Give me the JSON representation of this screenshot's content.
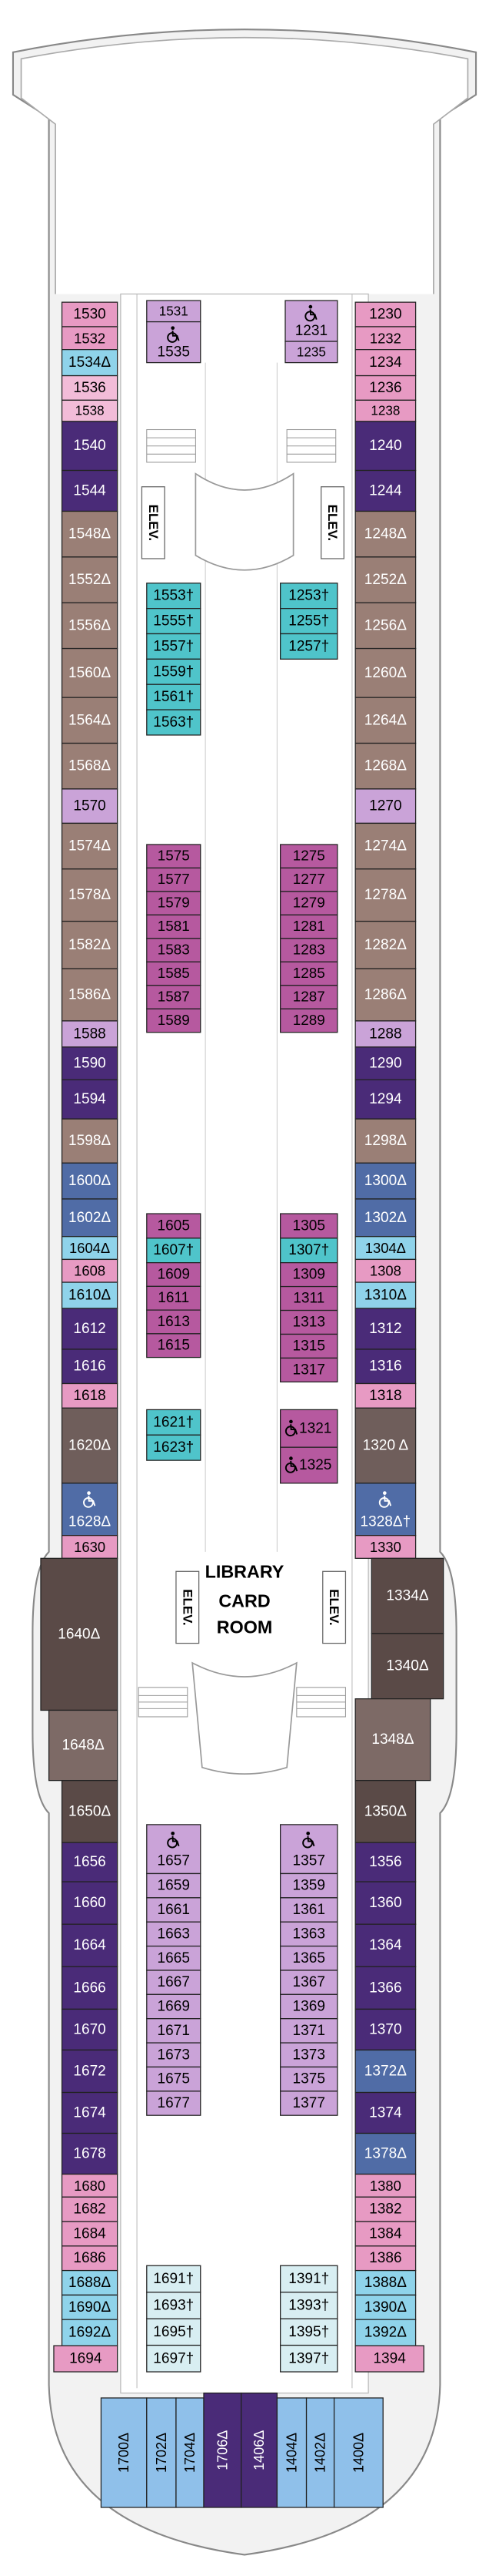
{
  "elevator_labels": [
    "ELEV.",
    "ELEV.",
    "ELEV.",
    "ELEV."
  ],
  "library_label": [
    "LIBRARY",
    "CARD",
    "ROOM"
  ],
  "groups": [
    {
      "labels": [
        "1530",
        "1532"
      ],
      "color": "#e79ac3",
      "text_color": "#000000"
    },
    {
      "labels": [
        "1534Δ"
      ],
      "color": "#8fd3ea",
      "text_color": "#000000"
    },
    {
      "labels": [
        "1536",
        "1538"
      ],
      "color": "#f2bcd8",
      "text_color": "#000000"
    },
    {
      "labels": [
        "1540",
        "1544"
      ],
      "color": "#4a2b78",
      "text_color": "#ffffff"
    },
    {
      "labels": [
        "1548Δ",
        "1552Δ",
        "1556Δ",
        "1560Δ",
        "1564Δ",
        "1568Δ"
      ],
      "color": "#9a7f76",
      "text_color": "#ffffff"
    },
    {
      "labels": [
        "1570"
      ],
      "color": "#caa3d8",
      "text_color": "#000000"
    },
    {
      "labels": [
        "1574Δ",
        "1578Δ",
        "1582Δ",
        "1586Δ"
      ],
      "color": "#9a7f76",
      "text_color": "#ffffff"
    },
    {
      "labels": [
        "1588"
      ],
      "color": "#caa3d8",
      "text_color": "#000000"
    },
    {
      "labels": [
        "1590",
        "1594"
      ],
      "color": "#4a2b78",
      "text_color": "#ffffff"
    },
    {
      "labels": [
        "1598Δ"
      ],
      "color": "#9a7f76",
      "text_color": "#ffffff"
    },
    {
      "labels": [
        "1600Δ",
        "1602Δ"
      ],
      "color": "#506ca6",
      "text_color": "#ffffff"
    },
    {
      "labels": [
        "1604Δ"
      ],
      "color": "#8fd3ea",
      "text_color": "#000000"
    },
    {
      "labels": [
        "1608"
      ],
      "color": "#e79ac3",
      "text_color": "#000000"
    },
    {
      "labels": [
        "1610Δ"
      ],
      "color": "#8fd3ea",
      "text_color": "#000000"
    },
    {
      "labels": [
        "1612",
        "1616"
      ],
      "color": "#4a2b78",
      "text_color": "#ffffff"
    },
    {
      "labels": [
        "1618"
      ],
      "color": "#e79ac3",
      "text_color": "#000000"
    },
    {
      "labels": [
        "1620Δ"
      ],
      "color": "#6f5e5b",
      "text_color": "#ffffff"
    },
    {
      "labels": [
        "1628Δ"
      ],
      "color": "#506ca6",
      "text_color": "#ffffff",
      "accessible": true
    },
    {
      "labels": [
        "1630"
      ],
      "color": "#e79ac3",
      "text_color": "#000000"
    },
    {
      "labels": [
        "1640Δ"
      ],
      "color": "#5a4a47",
      "text_color": "#ffffff"
    },
    {
      "labels": [
        "1648Δ"
      ],
      "color": "#7d6a66",
      "text_color": "#ffffff"
    },
    {
      "labels": [
        "1650Δ"
      ],
      "color": "#5a4a47",
      "text_color": "#ffffff"
    },
    {
      "labels": [
        "1656",
        "1660",
        "1664",
        "1666",
        "1670",
        "1672",
        "1674",
        "1678"
      ],
      "color": "#4a2b78",
      "text_color": "#ffffff"
    },
    {
      "labels": [
        "1680",
        "1682",
        "1684",
        "1686"
      ],
      "color": "#e79ac3",
      "text_color": "#000000"
    },
    {
      "labels": [
        "1688Δ",
        "1690Δ",
        "1692Δ"
      ],
      "color": "#8fd3ea",
      "text_color": "#000000"
    },
    {
      "labels": [
        "1694"
      ],
      "color": "#e79ac3",
      "text_color": "#000000"
    },
    {
      "labels": [
        "1230",
        "1232",
        "1234",
        "1236",
        "1238"
      ],
      "color": "#e79ac3",
      "text_color": "#000000"
    },
    {
      "labels": [
        "1240",
        "1244"
      ],
      "color": "#4a2b78",
      "text_color": "#ffffff"
    },
    {
      "labels": [
        "1248Δ",
        "1252Δ",
        "1256Δ",
        "1260Δ",
        "1264Δ",
        "1268Δ"
      ],
      "color": "#9a7f76",
      "text_color": "#ffffff"
    },
    {
      "labels": [
        "1270"
      ],
      "color": "#caa3d8",
      "text_color": "#000000"
    },
    {
      "labels": [
        "1274Δ",
        "1278Δ",
        "1282Δ",
        "1286Δ"
      ],
      "color": "#9a7f76",
      "text_color": "#ffffff"
    },
    {
      "labels": [
        "1288"
      ],
      "color": "#caa3d8",
      "text_color": "#000000"
    },
    {
      "labels": [
        "1290",
        "1294"
      ],
      "color": "#4a2b78",
      "text_color": "#ffffff"
    },
    {
      "labels": [
        "1298Δ"
      ],
      "color": "#9a7f76",
      "text_color": "#ffffff"
    },
    {
      "labels": [
        "1300Δ",
        "1302Δ"
      ],
      "color": "#506ca6",
      "text_color": "#ffffff"
    },
    {
      "labels": [
        "1304Δ"
      ],
      "color": "#8fd3ea",
      "text_color": "#000000"
    },
    {
      "labels": [
        "1308"
      ],
      "color": "#e79ac3",
      "text_color": "#000000"
    },
    {
      "labels": [
        "1310Δ"
      ],
      "color": "#8fd3ea",
      "text_color": "#000000"
    },
    {
      "labels": [
        "1312",
        "1316"
      ],
      "color": "#4a2b78",
      "text_color": "#ffffff"
    },
    {
      "labels": [
        "1318"
      ],
      "color": "#e79ac3",
      "text_color": "#000000"
    },
    {
      "labels": [
        "1320 Δ"
      ],
      "color": "#6f5e5b",
      "text_color": "#ffffff"
    },
    {
      "labels": [
        "1328Δ†"
      ],
      "color": "#506ca6",
      "text_color": "#ffffff",
      "accessible": true
    },
    {
      "labels": [
        "1330"
      ],
      "color": "#e79ac3",
      "text_color": "#000000"
    },
    {
      "labels": [
        "1334Δ",
        "1340Δ"
      ],
      "color": "#5a4a47",
      "text_color": "#ffffff"
    },
    {
      "labels": [
        "1348Δ"
      ],
      "color": "#7d6a66",
      "text_color": "#ffffff"
    },
    {
      "labels": [
        "1350Δ"
      ],
      "color": "#5a4a47",
      "text_color": "#ffffff"
    },
    {
      "labels": [
        "1356",
        "1360",
        "1364",
        "1366",
        "1370"
      ],
      "color": "#4a2b78",
      "text_color": "#ffffff"
    },
    {
      "labels": [
        "1372Δ"
      ],
      "color": "#506ca6",
      "text_color": "#ffffff"
    },
    {
      "labels": [
        "1374"
      ],
      "color": "#4a2b78",
      "text_color": "#ffffff"
    },
    {
      "labels": [
        "1378Δ"
      ],
      "color": "#506ca6",
      "text_color": "#ffffff"
    },
    {
      "labels": [
        "1380",
        "1382",
        "1384",
        "1386"
      ],
      "color": "#e79ac3",
      "text_color": "#000000"
    },
    {
      "labels": [
        "1388Δ",
        "1390Δ",
        "1392Δ"
      ],
      "color": "#8fd3ea",
      "text_color": "#000000"
    },
    {
      "labels": [
        "1394"
      ],
      "color": "#e79ac3",
      "text_color": "#000000"
    },
    {
      "labels": [
        "1531"
      ],
      "color": "#caa3d8",
      "text_color": "#000000"
    },
    {
      "labels": [
        "1535"
      ],
      "color": "#caa3d8",
      "text_color": "#000000",
      "accessible": true
    },
    {
      "labels": [
        "1231"
      ],
      "color": "#caa3d8",
      "text_color": "#000000",
      "accessible": true
    },
    {
      "labels": [
        "1235"
      ],
      "color": "#caa3d8",
      "text_color": "#000000"
    },
    {
      "labels": [
        "1553†",
        "1555†",
        "1557†",
        "1559†",
        "1561†",
        "1563†"
      ],
      "color": "#4fc4ca",
      "text_color": "#000000"
    },
    {
      "labels": [
        "1253†",
        "1255†",
        "1257†"
      ],
      "color": "#4fc4ca",
      "text_color": "#000000"
    },
    {
      "labels": [
        "1575",
        "1577",
        "1579",
        "1581",
        "1583",
        "1585",
        "1587",
        "1589"
      ],
      "color": "#b6599f",
      "text_color": "#000000"
    },
    {
      "labels": [
        "1275",
        "1277",
        "1279",
        "1281",
        "1283",
        "1285",
        "1287",
        "1289"
      ],
      "color": "#b6599f",
      "text_color": "#000000"
    },
    {
      "labels": [
        "1605"
      ],
      "color": "#b6599f",
      "text_color": "#000000"
    },
    {
      "labels": [
        "1607†"
      ],
      "color": "#4fc4ca",
      "text_color": "#000000"
    },
    {
      "labels": [
        "1609",
        "1611",
        "1613",
        "1615"
      ],
      "color": "#b6599f",
      "text_color": "#000000"
    },
    {
      "labels": [
        "1305"
      ],
      "color": "#b6599f",
      "text_color": "#000000"
    },
    {
      "labels": [
        "1307†"
      ],
      "color": "#4fc4ca",
      "text_color": "#000000"
    },
    {
      "labels": [
        "1309",
        "1311",
        "1313",
        "1315",
        "1317"
      ],
      "color": "#b6599f",
      "text_color": "#000000"
    },
    {
      "labels": [
        "1621†",
        "1623†"
      ],
      "color": "#4fc4ca",
      "text_color": "#000000"
    },
    {
      "labels": [
        "1321",
        "1325"
      ],
      "color": "#b6599f",
      "text_color": "#000000",
      "accessible": true
    },
    {
      "labels": [
        "1657"
      ],
      "color": "#caa3d8",
      "text_color": "#000000",
      "accessible": true
    },
    {
      "labels": [
        "1659",
        "1661",
        "1663",
        "1665",
        "1667",
        "1669",
        "1671",
        "1673",
        "1675",
        "1677"
      ],
      "color": "#caa3d8",
      "text_color": "#000000"
    },
    {
      "labels": [
        "1357"
      ],
      "color": "#caa3d8",
      "text_color": "#000000",
      "accessible": true
    },
    {
      "labels": [
        "1359",
        "1361",
        "1363",
        "1365",
        "1367",
        "1369",
        "1371",
        "1373",
        "1375",
        "1377"
      ],
      "color": "#caa3d8",
      "text_color": "#000000"
    },
    {
      "labels": [
        "1691†",
        "1693†",
        "1695†",
        "1697†"
      ],
      "color": "#d8eef2",
      "text_color": "#000000"
    },
    {
      "labels": [
        "1391†",
        "1393†",
        "1395†",
        "1397†"
      ],
      "color": "#d8eef2",
      "text_color": "#000000"
    },
    {
      "labels": [
        "1700Δ",
        "1702Δ",
        "1704Δ"
      ],
      "color": "#8fc0ea",
      "text_color": "#000000"
    },
    {
      "labels": [
        "1706Δ",
        "1406Δ"
      ],
      "color": "#4a2b78",
      "text_color": "#ffffff"
    },
    {
      "labels": [
        "1404Δ",
        "1402Δ",
        "1400Δ"
      ],
      "color": "#8fc0ea",
      "text_color": "#000000"
    }
  ]
}
